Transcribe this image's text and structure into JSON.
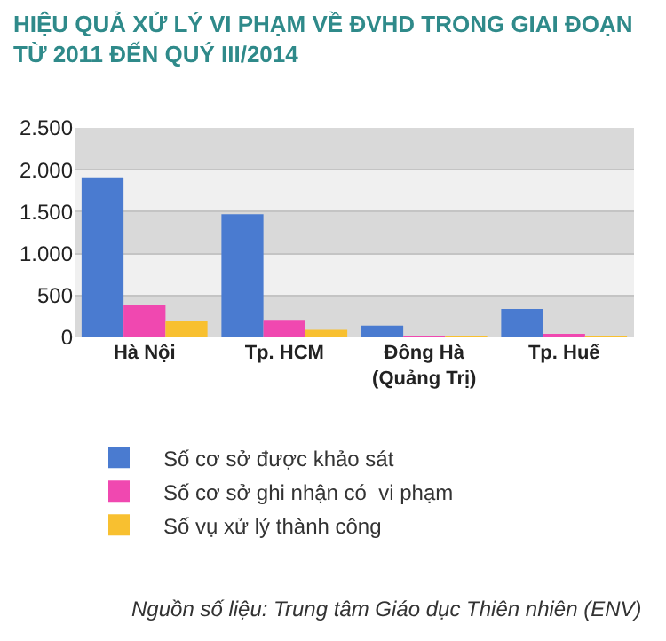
{
  "chart_data": {
    "type": "bar",
    "title": "HIỆU QUẢ XỬ LÝ VI PHẠM VỀ ĐVHD TRONG GIAI ĐOẠN\nTỪ 2011 ĐẾN QUÝ III/2014",
    "categories": [
      "Hà Nội",
      "Tp. HCM",
      "Đông Hà\n(Quảng Trị)",
      "Tp. Huế"
    ],
    "series": [
      {
        "name": "Số cơ sở được khảo sát",
        "color": "#4a7bd0",
        "values": [
          1910,
          1470,
          140,
          340
        ]
      },
      {
        "name": "Số cơ sở ghi nhận có  vi phạm",
        "color": "#f048b0",
        "values": [
          380,
          210,
          20,
          30
        ]
      },
      {
        "name": "Số vụ xử lý thành công",
        "color": "#f8c030",
        "values": [
          200,
          90,
          20,
          20
        ]
      }
    ],
    "ylim": [
      0,
      2500
    ],
    "yticks": [
      {
        "value": 0,
        "label": "0"
      },
      {
        "value": 500,
        "label": "500"
      },
      {
        "value": 1000,
        "label": "1.000"
      },
      {
        "value": 1500,
        "label": "1.500"
      },
      {
        "value": 2000,
        "label": "2.000"
      },
      {
        "value": 2500,
        "label": "2.500"
      }
    ],
    "grid": "y",
    "legend": "bottom",
    "annotations": [
      "Nguồn số liệu: Trung tâm Giáo dục Thiên nhiên (ENV)"
    ]
  }
}
